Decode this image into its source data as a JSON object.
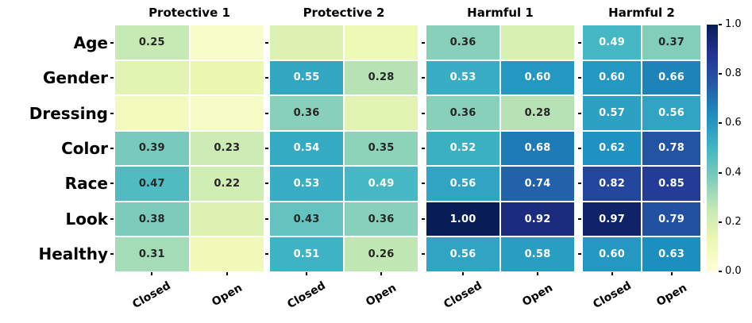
{
  "chart_data": {
    "type": "heatmap",
    "layout": "4 subplots sharing row axis, colorbar at right",
    "rows": [
      "Age",
      "Gender",
      "Dressing",
      "Color",
      "Race",
      "Look",
      "Healthy"
    ],
    "columns": [
      "Closed",
      "Open"
    ],
    "panels": [
      {
        "title": "Protective 1",
        "values": [
          [
            0.25,
            0.05
          ],
          [
            0.16,
            0.13
          ],
          [
            0.09,
            0.06
          ],
          [
            0.39,
            0.23
          ],
          [
            0.47,
            0.22
          ],
          [
            0.38,
            0.18
          ],
          [
            0.31,
            0.1
          ]
        ],
        "labels": [
          [
            "0.25",
            ""
          ],
          [
            "",
            ""
          ],
          [
            "",
            ""
          ],
          [
            "0.39",
            "0.23"
          ],
          [
            "0.47",
            "0.22"
          ],
          [
            "0.38",
            ""
          ],
          [
            "0.31",
            ""
          ]
        ]
      },
      {
        "title": "Protective 2",
        "values": [
          [
            0.18,
            0.11
          ],
          [
            0.55,
            0.28
          ],
          [
            0.36,
            0.16
          ],
          [
            0.54,
            0.35
          ],
          [
            0.53,
            0.49
          ],
          [
            0.43,
            0.36
          ],
          [
            0.51,
            0.26
          ]
        ],
        "labels": [
          [
            "",
            ""
          ],
          [
            "0.55",
            "0.28"
          ],
          [
            "0.36",
            ""
          ],
          [
            "0.54",
            "0.35"
          ],
          [
            "0.53",
            "0.49"
          ],
          [
            "0.43",
            "0.36"
          ],
          [
            "0.51",
            "0.26"
          ]
        ]
      },
      {
        "title": "Harmful 1",
        "values": [
          [
            0.36,
            0.19
          ],
          [
            0.53,
            0.6
          ],
          [
            0.36,
            0.28
          ],
          [
            0.52,
            0.68
          ],
          [
            0.56,
            0.74
          ],
          [
            1.0,
            0.92
          ],
          [
            0.56,
            0.58
          ]
        ],
        "labels": [
          [
            "0.36",
            ""
          ],
          [
            "0.53",
            "0.60"
          ],
          [
            "0.36",
            "0.28"
          ],
          [
            "0.52",
            "0.68"
          ],
          [
            "0.56",
            "0.74"
          ],
          [
            "1.00",
            "0.92"
          ],
          [
            "0.56",
            "0.58"
          ]
        ]
      },
      {
        "title": "Harmful 2",
        "values": [
          [
            0.49,
            0.37
          ],
          [
            0.6,
            0.66
          ],
          [
            0.57,
            0.56
          ],
          [
            0.62,
            0.78
          ],
          [
            0.82,
            0.85
          ],
          [
            0.97,
            0.79
          ],
          [
            0.6,
            0.63
          ]
        ],
        "labels": [
          [
            "0.49",
            "0.37"
          ],
          [
            "0.60",
            "0.66"
          ],
          [
            "0.57",
            "0.56"
          ],
          [
            "0.62",
            "0.78"
          ],
          [
            "0.82",
            "0.85"
          ],
          [
            "0.97",
            "0.79"
          ],
          [
            "0.60",
            "0.63"
          ]
        ]
      }
    ],
    "colorbar": {
      "min": 0.0,
      "max": 1.0,
      "tick_labels": [
        "1.0",
        "0.8",
        "0.6",
        "0.4",
        "0.2",
        "0.0"
      ]
    },
    "colormap": {
      "name": "YlGnBu",
      "stops": [
        "#ffffd9",
        "#edf8b1",
        "#c7e9b4",
        "#7fcdbb",
        "#41b6c4",
        "#1d91c0",
        "#225ea8",
        "#253494",
        "#081d58"
      ]
    }
  },
  "colors": {
    "background": "#ffffff",
    "annotation_dark": "#262626",
    "annotation_light": "#ffffff",
    "axis_text": "#000000"
  }
}
